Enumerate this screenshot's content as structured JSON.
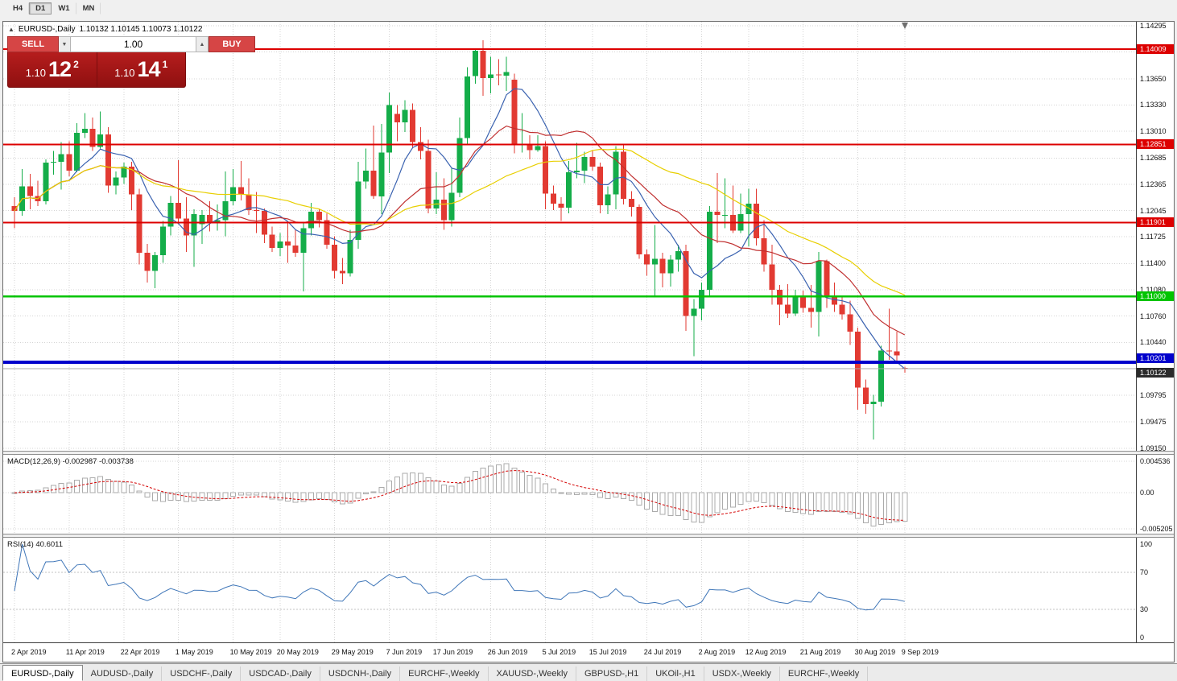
{
  "toolbar": {
    "timeframes": [
      {
        "label": "H4",
        "active": false
      },
      {
        "label": "D1",
        "active": true
      },
      {
        "label": "W1",
        "active": false
      },
      {
        "label": "MN",
        "active": false
      }
    ]
  },
  "chart": {
    "symbol": "EURUSD-,Daily",
    "ohlc_line": "1.10132 1.10145 1.10073 1.10122"
  },
  "trade_widget": {
    "sell_label": "SELL",
    "buy_label": "BUY",
    "volume": "1.00",
    "bid": {
      "prefix": "1.10",
      "pips": "12",
      "frac": "2"
    },
    "ask": {
      "prefix": "1.10",
      "pips": "14",
      "frac": "1"
    },
    "colors": {
      "button_bg": "#d64545",
      "panel_bg": "#a81717"
    }
  },
  "macd": {
    "label": "MACD(12,26,9) -0.002987 -0.003738",
    "scale": [
      {
        "label": "0.004536",
        "value": 0.004536
      },
      {
        "label": "0.00",
        "value": 0
      },
      {
        "label": "-0.005205",
        "value": -0.005205
      }
    ]
  },
  "rsi": {
    "label": "RSI(14) 40.6011",
    "value": 40.6011,
    "scale": [
      {
        "label": "100",
        "value": 100
      },
      {
        "label": "70",
        "value": 70
      },
      {
        "label": "30",
        "value": 30
      },
      {
        "label": "0",
        "value": 0
      }
    ]
  },
  "tabs": [
    {
      "label": "EURUSD-,Daily",
      "active": true
    },
    {
      "label": "AUDUSD-,Daily",
      "active": false
    },
    {
      "label": "USDCHF-,Daily",
      "active": false
    },
    {
      "label": "USDCAD-,Daily",
      "active": false
    },
    {
      "label": "USDCNH-,Daily",
      "active": false
    },
    {
      "label": "EURCHF-,Weekly",
      "active": false
    },
    {
      "label": "XAUUSD-,Weekly",
      "active": false
    },
    {
      "label": "GBPUSD-,H1",
      "active": false
    },
    {
      "label": "UKOil-,H1",
      "active": false
    },
    {
      "label": "USDX-,Weekly",
      "active": false
    },
    {
      "label": "EURCHF-,Weekly",
      "active": false
    }
  ],
  "chart_data": {
    "type": "candlestick",
    "symbol": "EURUSD",
    "timeframe": "Daily",
    "current": {
      "open": 1.10132,
      "high": 1.10145,
      "low": 1.10073,
      "close": 1.10122
    },
    "ylim": [
      1.0915,
      1.14295
    ],
    "price_scale": [
      "1.14295",
      "1.13650",
      "1.13330",
      "1.13010",
      "1.12685",
      "1.12365",
      "1.12045",
      "1.11725",
      "1.11400",
      "1.11080",
      "1.10760",
      "1.10440",
      "1.09795",
      "1.09475",
      "1.09150"
    ],
    "hidden_ticks": [
      1.13975,
      1.1012
    ],
    "hlines": [
      {
        "value": 1.14009,
        "label": "1.14009",
        "color": "#dd0000",
        "width": 2
      },
      {
        "value": 1.12851,
        "label": "1.12851",
        "color": "#dd0000",
        "width": 2
      },
      {
        "value": 1.11901,
        "label": "1.11901",
        "color": "#dd0000",
        "width": 2
      },
      {
        "value": 1.11,
        "label": "1.11000",
        "color": "#00c400",
        "width": 2.5
      },
      {
        "value": 1.10201,
        "label": "1.10201",
        "color": "#0000cc",
        "width": 4
      }
    ],
    "current_price": {
      "value": 1.10122,
      "label": "1.10122",
      "bg": "#2b2b2b"
    },
    "moving_averages": [
      {
        "name": "fast",
        "period": 8,
        "color": "#3a62b0"
      },
      {
        "name": "mid",
        "period": 16,
        "color": "#c03030"
      },
      {
        "name": "slow",
        "period": 32,
        "color": "#e8cf00"
      }
    ],
    "macd_scale": {
      "max": 0.004536,
      "min": -0.005205
    },
    "date_labels": [
      {
        "index": 0,
        "label": "2 Apr 2019"
      },
      {
        "index": 7,
        "label": "11 Apr 2019"
      },
      {
        "index": 14,
        "label": "22 Apr 2019"
      },
      {
        "index": 21,
        "label": "1 May 2019"
      },
      {
        "index": 28,
        "label": "10 May 2019"
      },
      {
        "index": 34,
        "label": "20 May 2019"
      },
      {
        "index": 41,
        "label": "29 May 2019"
      },
      {
        "index": 48,
        "label": "7 Jun 2019"
      },
      {
        "index": 54,
        "label": "17 Jun 2019"
      },
      {
        "index": 61,
        "label": "26 Jun 2019"
      },
      {
        "index": 68,
        "label": "5 Jul 2019"
      },
      {
        "index": 74,
        "label": "15 Jul 2019"
      },
      {
        "index": 81,
        "label": "24 Jul 2019"
      },
      {
        "index": 88,
        "label": "2 Aug 2019"
      },
      {
        "index": 94,
        "label": "12 Aug 2019"
      },
      {
        "index": 101,
        "label": "21 Aug 2019"
      },
      {
        "index": 108,
        "label": "30 Aug 2019"
      },
      {
        "index": 114,
        "label": "9 Sep 2019"
      }
    ],
    "colors": {
      "up": "#14ad49",
      "down": "#e23a32",
      "grid": "#d4d4d4",
      "macd_hist_stroke": "#ababab",
      "macd_signal": "#d40000",
      "rsi_line": "#3f76b8"
    },
    "candles": [
      [
        1.121,
        1.1221,
        1.1183,
        1.1204
      ],
      [
        1.1204,
        1.1255,
        1.1198,
        1.1234
      ],
      [
        1.1234,
        1.1249,
        1.1206,
        1.1222
      ],
      [
        1.1222,
        1.1241,
        1.121,
        1.1216
      ],
      [
        1.1216,
        1.1267,
        1.1212,
        1.1263
      ],
      [
        1.1263,
        1.1277,
        1.1248,
        1.1264
      ],
      [
        1.1264,
        1.1288,
        1.123,
        1.1273
      ],
      [
        1.1273,
        1.1289,
        1.1246,
        1.1253
      ],
      [
        1.1253,
        1.1311,
        1.1251,
        1.1299
      ],
      [
        1.1299,
        1.1323,
        1.1293,
        1.1304
      ],
      [
        1.1304,
        1.1318,
        1.1277,
        1.1282
      ],
      [
        1.1282,
        1.1325,
        1.128,
        1.1297
      ],
      [
        1.1297,
        1.1306,
        1.1226,
        1.1235
      ],
      [
        1.1235,
        1.1252,
        1.1224,
        1.1245
      ],
      [
        1.1245,
        1.1263,
        1.1237,
        1.1258
      ],
      [
        1.1258,
        1.1264,
        1.1205,
        1.1224
      ],
      [
        1.1224,
        1.1231,
        1.1139,
        1.1153
      ],
      [
        1.1153,
        1.1164,
        1.1117,
        1.1131
      ],
      [
        1.1131,
        1.1154,
        1.111,
        1.115
      ],
      [
        1.115,
        1.1192,
        1.1141,
        1.1185
      ],
      [
        1.1185,
        1.1222,
        1.1174,
        1.1214
      ],
      [
        1.1214,
        1.1266,
        1.1188,
        1.1195
      ],
      [
        1.1195,
        1.1221,
        1.1154,
        1.1174
      ],
      [
        1.1174,
        1.1206,
        1.1136,
        1.12
      ],
      [
        1.1188,
        1.1205,
        1.1164,
        1.1199
      ],
      [
        1.1199,
        1.1216,
        1.1179,
        1.1191
      ],
      [
        1.1191,
        1.1212,
        1.118,
        1.1193
      ],
      [
        1.1193,
        1.1252,
        1.1173,
        1.1216
      ],
      [
        1.1216,
        1.1255,
        1.1211,
        1.1233
      ],
      [
        1.1233,
        1.1265,
        1.1217,
        1.1224
      ],
      [
        1.1224,
        1.1244,
        1.1199,
        1.1205
      ],
      [
        1.1205,
        1.1227,
        1.1177,
        1.1204
      ],
      [
        1.1204,
        1.1207,
        1.1165,
        1.1175
      ],
      [
        1.1175,
        1.1185,
        1.1154,
        1.1159
      ],
      [
        1.1159,
        1.1177,
        1.1149,
        1.1167
      ],
      [
        1.1167,
        1.1189,
        1.1141,
        1.1162
      ],
      [
        1.1162,
        1.1181,
        1.1148,
        1.1153
      ],
      [
        1.1153,
        1.1189,
        1.1106,
        1.1183
      ],
      [
        1.1183,
        1.1214,
        1.1174,
        1.1203
      ],
      [
        1.1203,
        1.1206,
        1.1184,
        1.1193
      ],
      [
        1.1193,
        1.1201,
        1.1158,
        1.1163
      ],
      [
        1.1163,
        1.1173,
        1.1122,
        1.1131
      ],
      [
        1.1131,
        1.1147,
        1.1115,
        1.1128
      ],
      [
        1.1128,
        1.1181,
        1.1124,
        1.1169
      ],
      [
        1.1169,
        1.1264,
        1.1158,
        1.124
      ],
      [
        1.124,
        1.128,
        1.1231,
        1.1253
      ],
      [
        1.1253,
        1.1308,
        1.1219,
        1.1222
      ],
      [
        1.1222,
        1.131,
        1.12,
        1.1275
      ],
      [
        1.1275,
        1.1348,
        1.125,
        1.1333
      ],
      [
        1.1322,
        1.1333,
        1.1289,
        1.1312
      ],
      [
        1.1312,
        1.1339,
        1.13,
        1.1327
      ],
      [
        1.1327,
        1.1335,
        1.1281,
        1.1288
      ],
      [
        1.1288,
        1.1306,
        1.1267,
        1.1277
      ],
      [
        1.1277,
        1.1291,
        1.1201,
        1.1207
      ],
      [
        1.1207,
        1.1251,
        1.12,
        1.1218
      ],
      [
        1.1218,
        1.1244,
        1.1181,
        1.1193
      ],
      [
        1.1193,
        1.1256,
        1.1185,
        1.1226
      ],
      [
        1.1226,
        1.1318,
        1.1221,
        1.1293
      ],
      [
        1.1293,
        1.1379,
        1.1284,
        1.1368
      ],
      [
        1.1368,
        1.1402,
        1.1359,
        1.1399
      ],
      [
        1.1399,
        1.1412,
        1.1344,
        1.1366
      ],
      [
        1.1366,
        1.1392,
        1.1347,
        1.137
      ],
      [
        1.137,
        1.1389,
        1.1357,
        1.1369
      ],
      [
        1.1369,
        1.1392,
        1.135,
        1.1373
      ],
      [
        1.1364,
        1.1371,
        1.1274,
        1.1285
      ],
      [
        1.1285,
        1.1323,
        1.1275,
        1.1285
      ],
      [
        1.1285,
        1.1296,
        1.1267,
        1.1278
      ],
      [
        1.1278,
        1.1296,
        1.1276,
        1.1283
      ],
      [
        1.1283,
        1.1289,
        1.1206,
        1.1225
      ],
      [
        1.1225,
        1.1235,
        1.1205,
        1.1213
      ],
      [
        1.1213,
        1.1221,
        1.1192,
        1.1208
      ],
      [
        1.1208,
        1.1265,
        1.1201,
        1.1251
      ],
      [
        1.1251,
        1.1287,
        1.1244,
        1.1253
      ],
      [
        1.1253,
        1.1276,
        1.1238,
        1.127
      ],
      [
        1.127,
        1.1278,
        1.1253,
        1.1258
      ],
      [
        1.1258,
        1.1263,
        1.1201,
        1.1211
      ],
      [
        1.1211,
        1.1234,
        1.12,
        1.1224
      ],
      [
        1.1224,
        1.1283,
        1.1206,
        1.1276
      ],
      [
        1.1276,
        1.1284,
        1.1212,
        1.1219
      ],
      [
        1.1219,
        1.1228,
        1.1197,
        1.1209
      ],
      [
        1.1209,
        1.1212,
        1.1146,
        1.1151
      ],
      [
        1.1151,
        1.1157,
        1.1125,
        1.1139
      ],
      [
        1.1139,
        1.1187,
        1.11,
        1.1146
      ],
      [
        1.1146,
        1.1153,
        1.1111,
        1.1128
      ],
      [
        1.1128,
        1.115,
        1.1112,
        1.1145
      ],
      [
        1.1145,
        1.1163,
        1.113,
        1.1155
      ],
      [
        1.1155,
        1.1163,
        1.1058,
        1.1076
      ],
      [
        1.1076,
        1.1097,
        1.1027,
        1.1085
      ],
      [
        1.1085,
        1.1117,
        1.1071,
        1.1108
      ],
      [
        1.1108,
        1.121,
        1.11,
        1.1203
      ],
      [
        1.1203,
        1.125,
        1.1165,
        1.1199
      ],
      [
        1.1199,
        1.1244,
        1.1183,
        1.1199
      ],
      [
        1.1199,
        1.1235,
        1.1177,
        1.118
      ],
      [
        1.118,
        1.1225,
        1.1177,
        1.12
      ],
      [
        1.12,
        1.1231,
        1.1161,
        1.1213
      ],
      [
        1.1213,
        1.1231,
        1.1162,
        1.1171
      ],
      [
        1.1171,
        1.1193,
        1.113,
        1.1139
      ],
      [
        1.1139,
        1.1163,
        1.109,
        1.1108
      ],
      [
        1.1108,
        1.1114,
        1.1065,
        1.109
      ],
      [
        1.109,
        1.1115,
        1.1074,
        1.1079
      ],
      [
        1.1079,
        1.1108,
        1.1076,
        1.1099
      ],
      [
        1.1099,
        1.1107,
        1.108,
        1.1086
      ],
      [
        1.1086,
        1.1114,
        1.1062,
        1.1081
      ],
      [
        1.1081,
        1.1154,
        1.1051,
        1.1143
      ],
      [
        1.1143,
        1.1145,
        1.1086,
        1.1101
      ],
      [
        1.1101,
        1.1117,
        1.1081,
        1.109
      ],
      [
        1.109,
        1.1099,
        1.1072,
        1.1078
      ],
      [
        1.1078,
        1.1095,
        1.1041,
        1.1057
      ],
      [
        1.1057,
        1.1062,
        1.0962,
        1.0989
      ],
      [
        1.0989,
        1.0999,
        1.0957,
        1.0969
      ],
      [
        1.0969,
        1.098,
        1.0926,
        1.0972
      ],
      [
        1.0972,
        1.104,
        1.0966,
        1.1034
      ],
      [
        1.1034,
        1.1085,
        1.1023,
        1.1033
      ],
      [
        1.1033,
        1.1057,
        1.1021,
        1.1028
      ],
      [
        1.10132,
        1.10145,
        1.10073,
        1.10122
      ]
    ]
  }
}
